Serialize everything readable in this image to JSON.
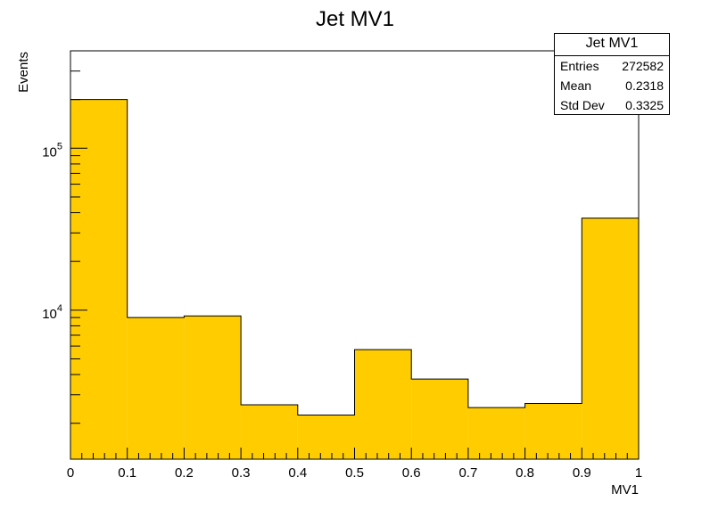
{
  "chart_data": {
    "type": "bar",
    "title": "Jet MV1",
    "xlabel": "MV1",
    "ylabel": "Events",
    "xlim": [
      0,
      1
    ],
    "ylim": [
      1200,
      400000
    ],
    "yscale": "log",
    "bin_edges": [
      0,
      0.1,
      0.2,
      0.3,
      0.4,
      0.5,
      0.6,
      0.7,
      0.8,
      0.9,
      1.0
    ],
    "values": [
      200000,
      9000,
      9200,
      2600,
      2250,
      5700,
      3750,
      2500,
      2650,
      37000
    ],
    "fill_color": "#ffcc00",
    "x_ticks": [
      "0",
      "0.1",
      "0.2",
      "0.3",
      "0.4",
      "0.5",
      "0.6",
      "0.7",
      "0.8",
      "0.9",
      "1"
    ],
    "y_tick_labels": [
      {
        "value": 10000,
        "base": "10",
        "exp": "4"
      },
      {
        "value": 100000,
        "base": "10",
        "exp": "5"
      }
    ],
    "grid": false,
    "legend": "none"
  },
  "stats_box": {
    "title": "Jet MV1",
    "rows": [
      {
        "label": "Entries",
        "value": "272582"
      },
      {
        "label": "Mean",
        "value": "0.2318"
      },
      {
        "label": "Std Dev",
        "value": "0.3325"
      }
    ]
  }
}
